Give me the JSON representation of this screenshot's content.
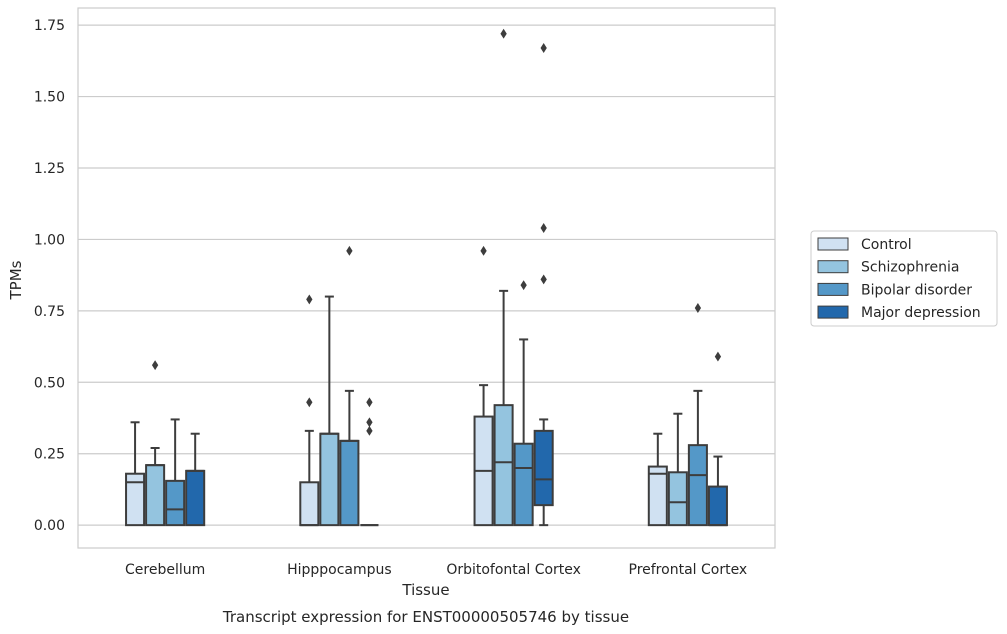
{
  "chart_data": {
    "type": "boxplot",
    "title": "",
    "caption": "Transcript expression for ENST00000505746 by tissue",
    "xlabel": "Tissue",
    "ylabel": "TPMs",
    "ylim": [
      -0.08,
      1.81
    ],
    "yticks": [
      0.0,
      0.25,
      0.5,
      0.75,
      1.0,
      1.25,
      1.5,
      1.75
    ],
    "ytick_labels": [
      "0.00",
      "0.25",
      "0.50",
      "0.75",
      "1.00",
      "1.25",
      "1.50",
      "1.75"
    ],
    "grid": true,
    "legend_position": "right",
    "categories": [
      "Cerebellum",
      "Hipppocampus",
      "Orbitofontal Cortex",
      "Prefrontal Cortex"
    ],
    "series": [
      {
        "name": "Control",
        "color": "#d0e1f2",
        "boxes": [
          {
            "min": 0.0,
            "q1": 0.0,
            "median": 0.15,
            "q3": 0.18,
            "max": 0.36,
            "outliers": []
          },
          {
            "min": 0.0,
            "q1": 0.0,
            "median": 0.0,
            "q3": 0.15,
            "max": 0.33,
            "outliers": [
              0.43,
              0.79
            ]
          },
          {
            "min": 0.0,
            "q1": 0.0,
            "median": 0.19,
            "q3": 0.38,
            "max": 0.49,
            "outliers": [
              0.96
            ]
          },
          {
            "min": 0.0,
            "q1": 0.0,
            "median": 0.18,
            "q3": 0.205,
            "max": 0.32,
            "outliers": []
          }
        ]
      },
      {
        "name": "Schizophrenia",
        "color": "#94c4df",
        "boxes": [
          {
            "min": 0.0,
            "q1": 0.0,
            "median": 0.21,
            "q3": 0.21,
            "max": 0.27,
            "outliers": [
              0.56
            ]
          },
          {
            "min": 0.0,
            "q1": 0.0,
            "median": 0.32,
            "q3": 0.32,
            "max": 0.8,
            "outliers": []
          },
          {
            "min": 0.0,
            "q1": 0.0,
            "median": 0.22,
            "q3": 0.42,
            "max": 0.82,
            "outliers": [
              1.72
            ]
          },
          {
            "min": 0.0,
            "q1": 0.0,
            "median": 0.08,
            "q3": 0.185,
            "max": 0.39,
            "outliers": []
          }
        ]
      },
      {
        "name": "Bipolar disorder",
        "color": "#5498c8",
        "boxes": [
          {
            "min": 0.0,
            "q1": 0.0,
            "median": 0.055,
            "q3": 0.155,
            "max": 0.37,
            "outliers": []
          },
          {
            "min": 0.0,
            "q1": 0.0,
            "median": 0.295,
            "q3": 0.295,
            "max": 0.47,
            "outliers": [
              0.96
            ]
          },
          {
            "min": 0.0,
            "q1": 0.0,
            "median": 0.2,
            "q3": 0.285,
            "max": 0.65,
            "outliers": [
              0.84
            ]
          },
          {
            "min": 0.0,
            "q1": 0.0,
            "median": 0.175,
            "q3": 0.28,
            "max": 0.47,
            "outliers": [
              0.76
            ]
          }
        ]
      },
      {
        "name": "Major depression",
        "color": "#2268ac",
        "boxes": [
          {
            "min": 0.0,
            "q1": 0.0,
            "median": 0.19,
            "q3": 0.19,
            "max": 0.32,
            "outliers": []
          },
          {
            "min": 0.0,
            "q1": 0.0,
            "median": 0.0,
            "q3": 0.0,
            "max": 0.0,
            "outliers": [
              0.33,
              0.36,
              0.43
            ]
          },
          {
            "min": 0.0,
            "q1": 0.07,
            "median": 0.16,
            "q3": 0.33,
            "max": 0.37,
            "outliers": [
              0.86,
              1.04,
              1.67
            ]
          },
          {
            "min": 0.0,
            "q1": 0.0,
            "median": 0.0,
            "q3": 0.135,
            "max": 0.24,
            "outliers": [
              0.59
            ]
          }
        ]
      }
    ]
  }
}
